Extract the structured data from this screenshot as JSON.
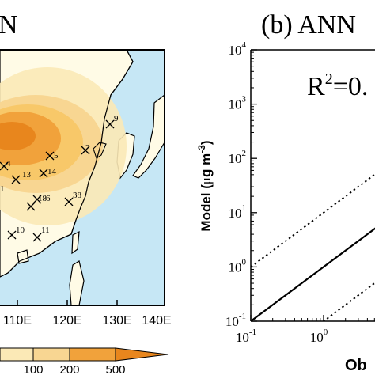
{
  "map_panel": {
    "title_fragment": "N",
    "lon_ticks": [
      "110E",
      "120E",
      "130E",
      "140E"
    ],
    "colorbar_ticks": [
      "100",
      "200",
      "500"
    ],
    "stations": [
      {
        "label": "1"
      },
      {
        "label": "2"
      },
      {
        "label": "4"
      },
      {
        "label": "5"
      },
      {
        "label": "6"
      },
      {
        "label": "9"
      },
      {
        "label": "10"
      },
      {
        "label": "11"
      },
      {
        "label": "13"
      },
      {
        "label": "14"
      },
      {
        "label": "18"
      },
      {
        "label": "38"
      }
    ],
    "colors": {
      "ocean": "#c6e7f5",
      "land": "#fffbe6",
      "low": "#fbe9b6",
      "mid": "#f8c869",
      "high": "#f1a23b",
      "peak": "#e8861d"
    }
  },
  "chart_data": {
    "type": "scatter",
    "title": "(b)  ANN",
    "annotation": {
      "r2_prefix": "R",
      "r2_sup": "2",
      "r2_suffix": "=0."
    },
    "ylabel": {
      "prefix": "Model (",
      "mu": "μ",
      "unit": "g m",
      "exp": "-3",
      "suffix": ")"
    },
    "xlabel_fragment": "Ob",
    "xscale": "log",
    "yscale": "log",
    "xlim": [
      0.1,
      30
    ],
    "ylim": [
      0.1,
      10000
    ],
    "y_ticks": [
      {
        "base": "10",
        "exp": "4",
        "v": 10000
      },
      {
        "base": "10",
        "exp": "3",
        "v": 1000
      },
      {
        "base": "10",
        "exp": "2",
        "v": 100
      },
      {
        "base": "10",
        "exp": "1",
        "v": 10
      },
      {
        "base": "10",
        "exp": "0",
        "v": 1
      },
      {
        "base": "10",
        "exp": "-1",
        "v": 0.1
      }
    ],
    "x_ticks": [
      {
        "base": "10",
        "exp": "-1",
        "v": 0.1
      },
      {
        "base": "10",
        "exp": "0",
        "v": 1
      }
    ],
    "reference_lines": [
      {
        "name": "1:1",
        "style": "solid",
        "factor": 1
      },
      {
        "name": "10:1",
        "style": "dotted",
        "factor": 10
      },
      {
        "name": "1:10",
        "style": "dotted",
        "factor": 0.1
      }
    ]
  }
}
